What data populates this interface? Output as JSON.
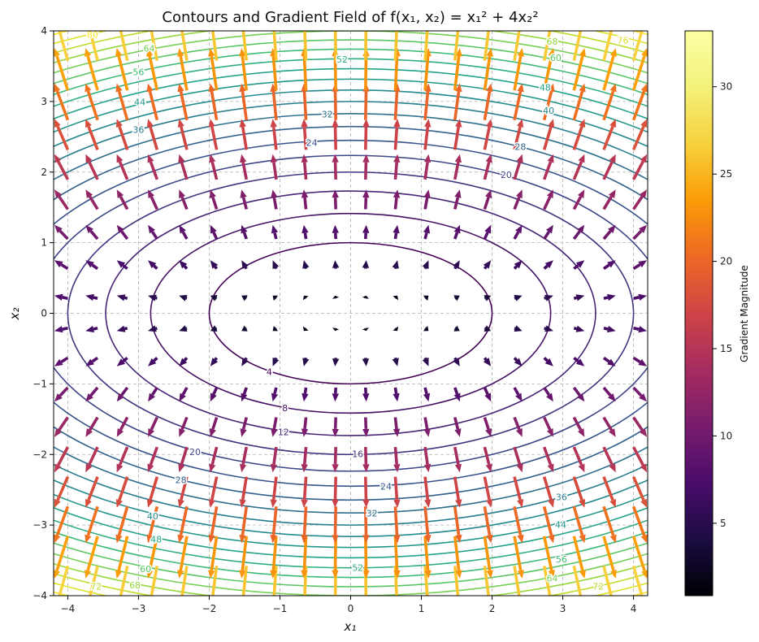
{
  "chart_data": {
    "type": "contour-quiver",
    "title": "Contours and Gradient Field of f(x₁, x₂) = x₁² + 4x₂²",
    "xlabel": "x₁",
    "ylabel": "x₂",
    "xlim": [
      -4.2,
      4.2
    ],
    "ylim": [
      -4,
      4
    ],
    "xticks": [
      -4,
      -3,
      -2,
      -1,
      0,
      1,
      2,
      3,
      4
    ],
    "yticks": [
      -4,
      -3,
      -2,
      -1,
      0,
      1,
      2,
      3,
      4
    ],
    "xtick_labels": [
      "−4",
      "−3",
      "−2",
      "−1",
      "0",
      "1",
      "2",
      "3",
      "4"
    ],
    "ytick_labels": [
      "−4",
      "−3",
      "−2",
      "−1",
      "0",
      "1",
      "2",
      "3",
      "4"
    ],
    "grid": true,
    "function": {
      "a": 1,
      "b": 4
    },
    "contour_levels": [
      4,
      8,
      12,
      16,
      20,
      24,
      28,
      32,
      36,
      40,
      44,
      48,
      52,
      56,
      60,
      64,
      68,
      72,
      76,
      80
    ],
    "contour_labels": [
      {
        "text": "4",
        "x": -1.15,
        "y": -0.83
      },
      {
        "text": "8",
        "x": -0.93,
        "y": -1.34
      },
      {
        "text": "12",
        "x": -0.95,
        "y": -1.68
      },
      {
        "text": "16",
        "x": 0.1,
        "y": -1.99
      },
      {
        "text": "20",
        "x": -2.2,
        "y": -1.96
      },
      {
        "text": "20",
        "x": 2.2,
        "y": 1.96
      },
      {
        "text": "24",
        "x": -0.55,
        "y": 2.42
      },
      {
        "text": "24",
        "x": 0.5,
        "y": -2.45
      },
      {
        "text": "28",
        "x": -2.4,
        "y": -2.36
      },
      {
        "text": "28",
        "x": 2.4,
        "y": 2.36
      },
      {
        "text": "32",
        "x": -0.33,
        "y": 2.82
      },
      {
        "text": "32",
        "x": 0.3,
        "y": -2.83
      },
      {
        "text": "36",
        "x": -3.0,
        "y": 2.6
      },
      {
        "text": "36",
        "x": 2.98,
        "y": -2.6
      },
      {
        "text": "40",
        "x": -2.8,
        "y": -2.87
      },
      {
        "text": "40",
        "x": 2.8,
        "y": 2.87
      },
      {
        "text": "44",
        "x": -2.98,
        "y": 2.99
      },
      {
        "text": "44",
        "x": 2.97,
        "y": -2.99
      },
      {
        "text": "48",
        "x": -2.75,
        "y": -3.2
      },
      {
        "text": "48",
        "x": 2.75,
        "y": 3.2
      },
      {
        "text": "52",
        "x": -0.12,
        "y": 3.6
      },
      {
        "text": "52",
        "x": 0.1,
        "y": -3.6
      },
      {
        "text": "56",
        "x": -3.0,
        "y": 3.42
      },
      {
        "text": "56",
        "x": 2.98,
        "y": -3.48
      },
      {
        "text": "60",
        "x": -2.9,
        "y": -3.62
      },
      {
        "text": "60",
        "x": 2.9,
        "y": 3.62
      },
      {
        "text": "64",
        "x": -2.85,
        "y": 3.75
      },
      {
        "text": "64",
        "x": 2.85,
        "y": -3.75
      },
      {
        "text": "68",
        "x": -3.05,
        "y": -3.85
      },
      {
        "text": "68",
        "x": 2.85,
        "y": 3.85
      },
      {
        "text": "72",
        "x": -3.6,
        "y": -3.87
      },
      {
        "text": "72",
        "x": 3.5,
        "y": -3.87
      },
      {
        "text": "76",
        "x": 3.85,
        "y": 3.87
      },
      {
        "text": "80",
        "x": -3.65,
        "y": 3.95
      }
    ],
    "quiver": {
      "x_positions": [
        -4,
        -3.5789,
        -3.1579,
        -2.7368,
        -2.3158,
        -1.8947,
        -1.4737,
        -1.0526,
        -0.6316,
        -0.2105,
        0.2105,
        0.6316,
        1.0526,
        1.4737,
        1.8947,
        2.3158,
        2.7368,
        3.1579,
        3.5789,
        4
      ],
      "y_positions": [
        -4,
        -3.5789,
        -3.1579,
        -2.7368,
        -2.3158,
        -1.8947,
        -1.4737,
        -1.0526,
        -0.6316,
        -0.2105,
        0.2105,
        0.6316,
        1.0526,
        1.4737,
        1.8947,
        2.3158,
        2.7368,
        3.1579,
        3.5789,
        4
      ],
      "vector_field": "grad f = (2·x₁, 8·x₂)",
      "color_by": "Gradient Magnitude"
    },
    "colorbar": {
      "label": "Gradient Magnitude",
      "colormap": "inferno",
      "range": [
        0.85,
        33.2
      ],
      "ticks": [
        5,
        10,
        15,
        20,
        25,
        30
      ],
      "tick_labels": [
        "5",
        "10",
        "15",
        "20",
        "25",
        "30"
      ]
    },
    "contour_colormap": "viridis"
  }
}
